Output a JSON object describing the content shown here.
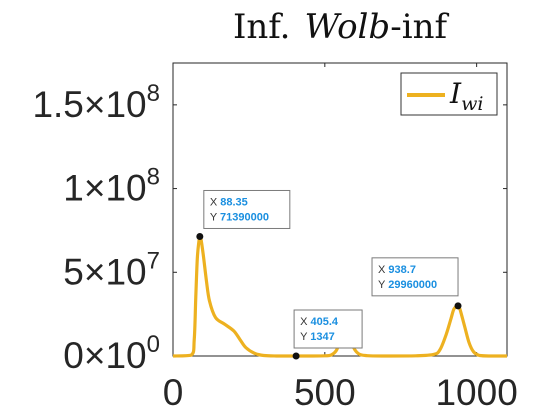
{
  "chart_data": {
    "type": "line",
    "title_parts": [
      "Inf.",
      "Wolb",
      "-inf"
    ],
    "xlim": [
      0,
      1100
    ],
    "ylim": [
      0,
      175000000
    ],
    "x_ticks": [
      {
        "value": 0,
        "label": "0"
      },
      {
        "value": 500,
        "label": "500"
      },
      {
        "value": 1000,
        "label": "1000"
      }
    ],
    "y_ticks": [
      {
        "value": 0,
        "mantissa": "0",
        "times": "×10",
        "exponent": "0"
      },
      {
        "value": 50000000,
        "mantissa": "5",
        "times": "×10",
        "exponent": "7"
      },
      {
        "value": 100000000,
        "mantissa": "1",
        "times": "×10",
        "exponent": "8"
      },
      {
        "value": 150000000,
        "mantissa": "1.5",
        "times": "×10",
        "exponent": "8"
      }
    ],
    "grid": false,
    "legend": {
      "placement": "top-right",
      "symbol": "I",
      "subscript": "wi"
    },
    "series": [
      {
        "name": "I_wi",
        "color": "#EDB120",
        "x": [
          0,
          60,
          70,
          75,
          80,
          85,
          88.35,
          92,
          100,
          110,
          120,
          140,
          170,
          200,
          220,
          240,
          270,
          300,
          340,
          400,
          450,
          500,
          520,
          540,
          555,
          565,
          575,
          590,
          610,
          640,
          700,
          800,
          860,
          880,
          900,
          915,
          925,
          935,
          938.7,
          945,
          960,
          975,
          990,
          1010,
          1050,
          1100
        ],
        "y": [
          0,
          500000,
          10000000,
          35000000,
          58000000,
          68000000,
          71390000,
          70000000,
          60000000,
          45000000,
          33000000,
          23000000,
          19000000,
          15000000,
          10000000,
          5000000,
          1500000,
          300000,
          10000,
          1347,
          2000,
          100000,
          500000,
          4000000,
          14000000,
          22000000,
          18000000,
          7000000,
          1500000,
          200000,
          5000,
          100000,
          1000000,
          4000000,
          13000000,
          22000000,
          28000000,
          29700000,
          29960000,
          28000000,
          18000000,
          8000000,
          2500000,
          300000,
          0,
          0
        ]
      }
    ],
    "datatips": [
      {
        "x": 88.35,
        "y": 71390000,
        "x_label": "X",
        "x_text": "88.35",
        "y_label": "Y",
        "y_text": "71390000"
      },
      {
        "x": 405.4,
        "y": 1347,
        "x_label": "X",
        "x_text": "405.4",
        "y_label": "Y",
        "y_text": "1347"
      },
      {
        "x": 938.7,
        "y": 29960000,
        "x_label": "X",
        "x_text": "938.7",
        "y_label": "Y",
        "y_text": "29960000"
      }
    ]
  }
}
